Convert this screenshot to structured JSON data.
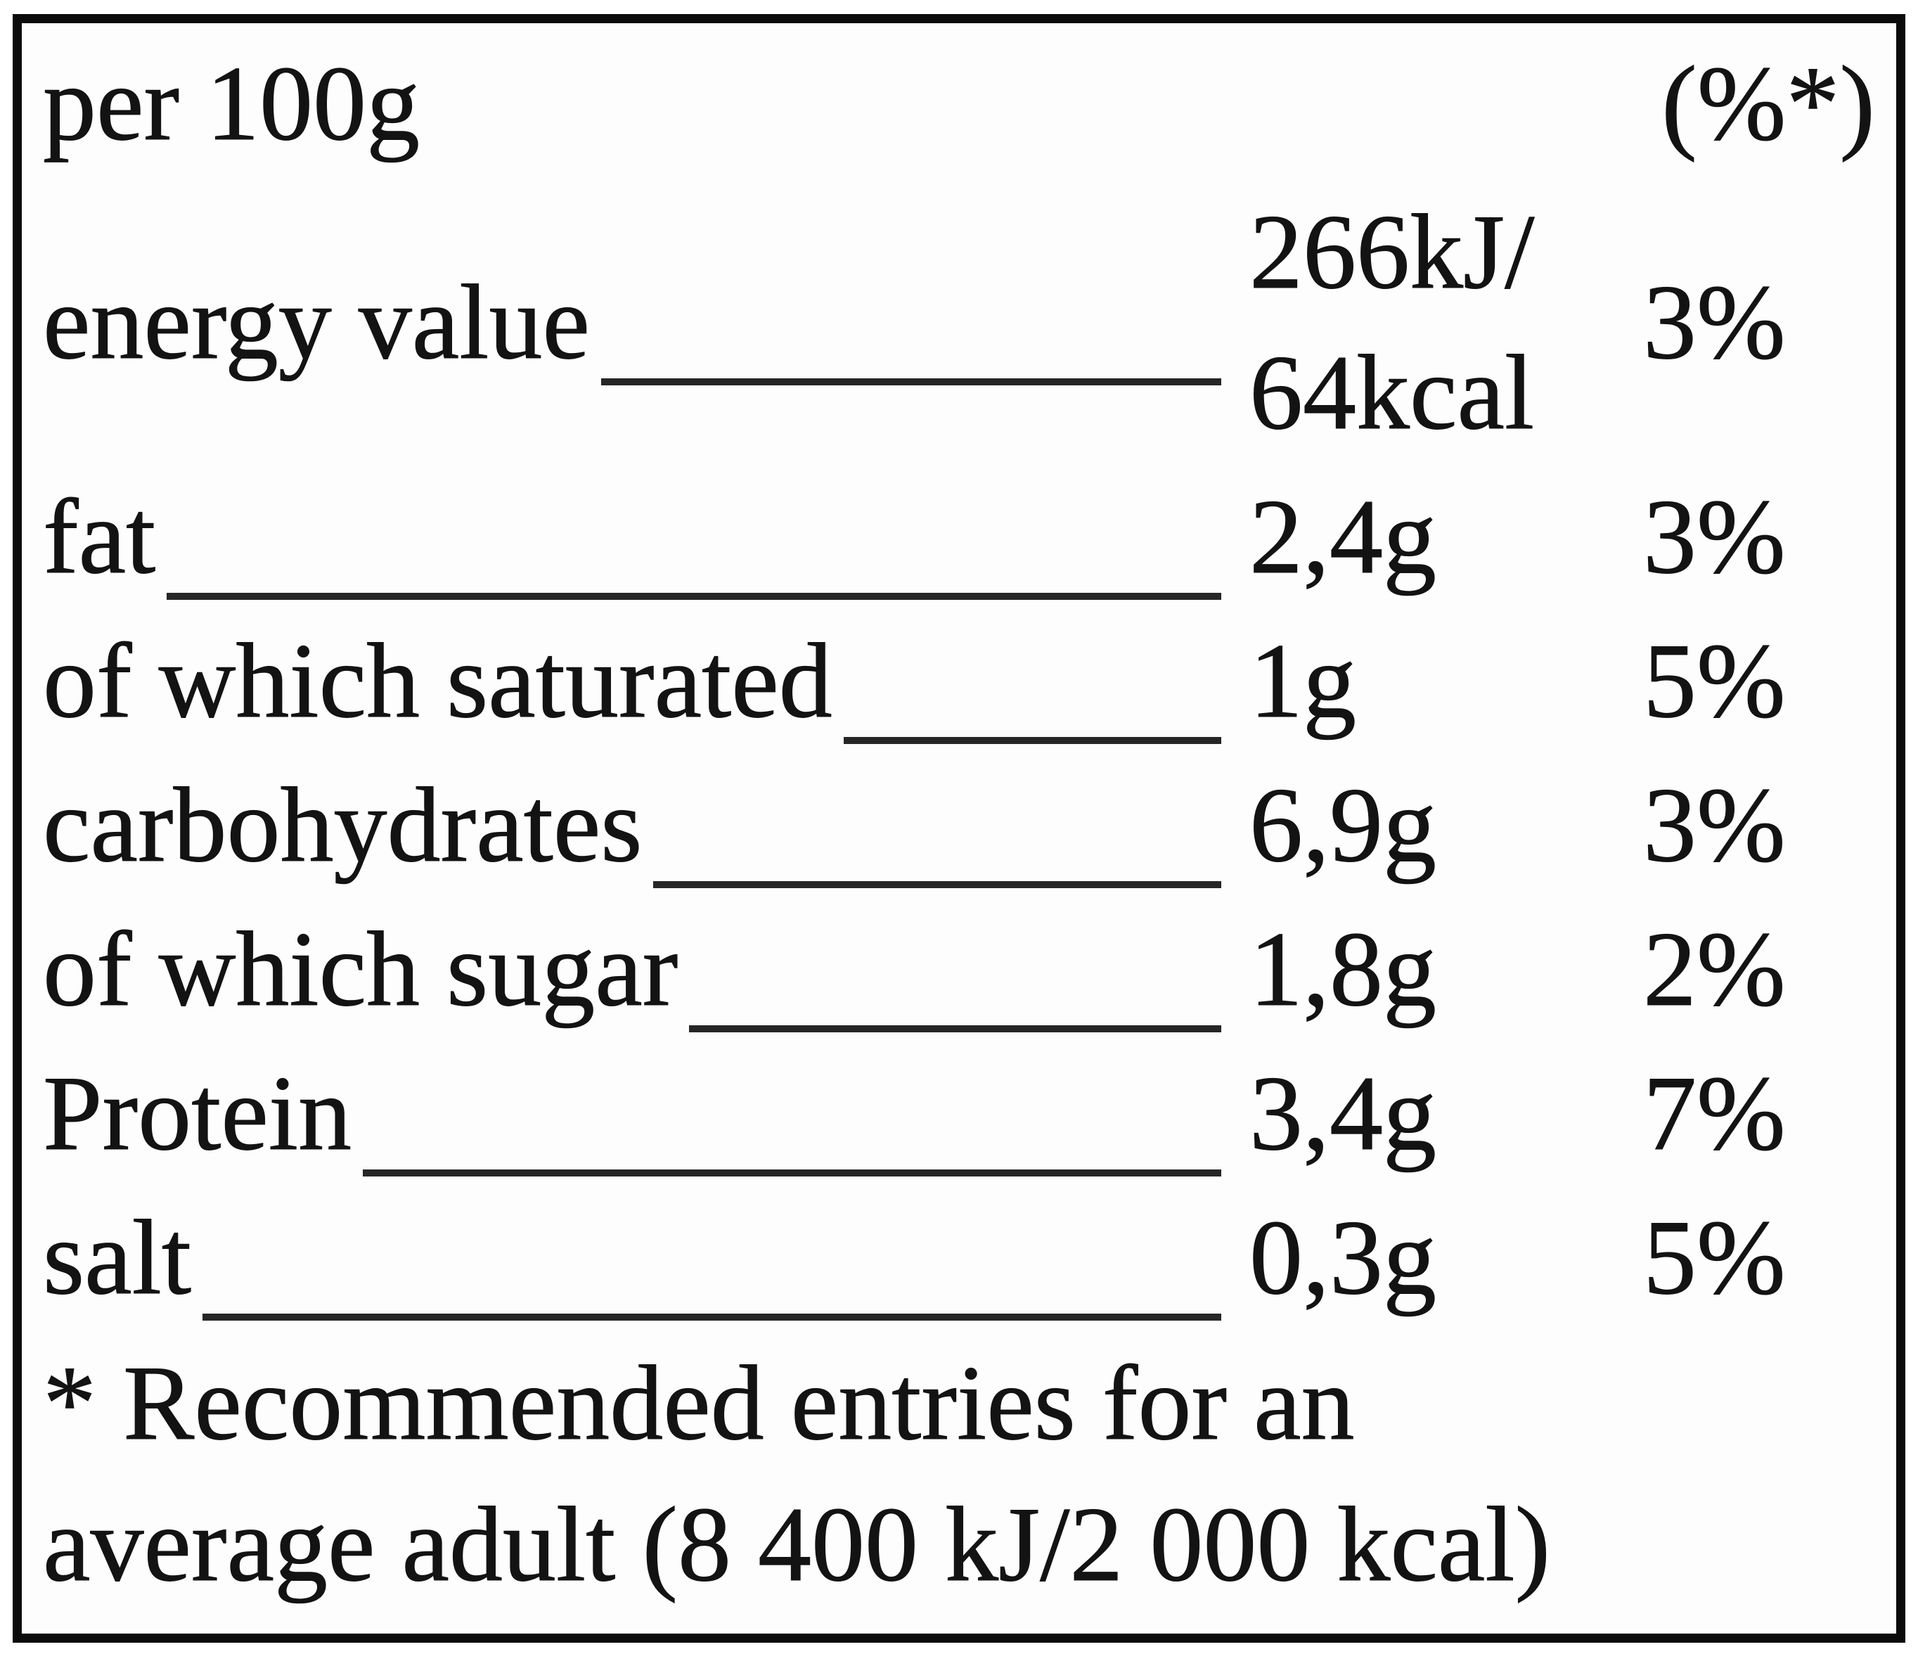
{
  "table": {
    "header": {
      "left": "per 100g",
      "right": "(%*)"
    },
    "rows": [
      {
        "label": "energy value",
        "value_lines": [
          "266kJ/",
          "64kcal"
        ],
        "percent": "3%"
      },
      {
        "label": "fat",
        "value": "2,4g",
        "percent": "3%"
      },
      {
        "label": "of which saturated",
        "value": "1g",
        "percent": "5%"
      },
      {
        "label": "carbohydrates",
        "value": "6,9g",
        "percent": "3%"
      },
      {
        "label": "of which sugar",
        "value": "1,8g",
        "percent": "2%"
      },
      {
        "label": "Protein",
        "value": "3,4g",
        "percent": "7%"
      },
      {
        "label": "salt",
        "value": "0,3g",
        "percent": "5%"
      }
    ],
    "footnote": {
      "line1": "* Recommended entries for an",
      "line2": "average adult (8 400 kJ/2 000 kcal)"
    }
  },
  "colors": {
    "text": "#131313",
    "background": "#ffffff",
    "panel_background": "#fdfdfd",
    "border": "#0b0b0b",
    "leader_line": "#262626"
  }
}
